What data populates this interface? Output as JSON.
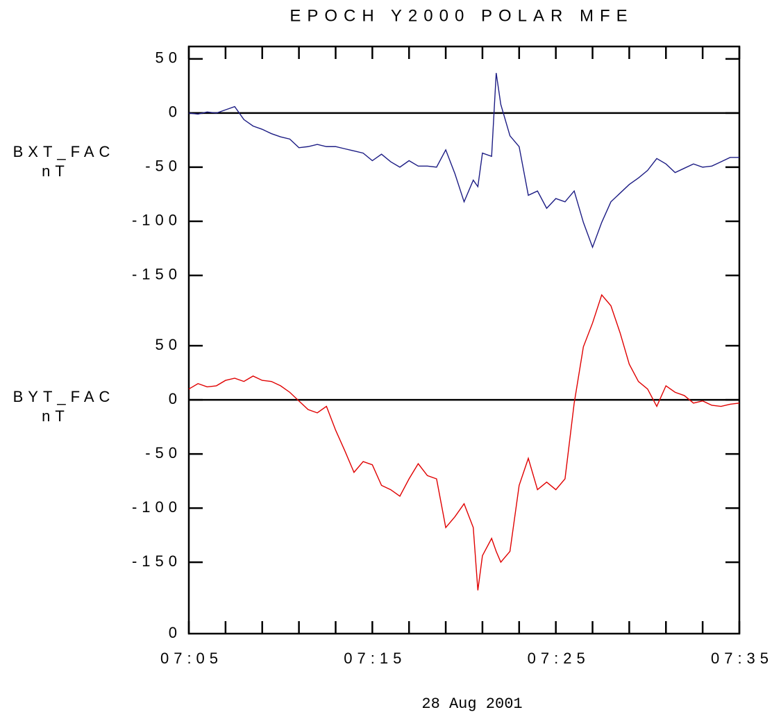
{
  "chart_data": {
    "type": "line",
    "title": "EPOCH Y2000 POLAR MFE",
    "xlabel": "28 Aug 2001",
    "corner_label": "0",
    "xlim": [
      "07:05:00",
      "07:35:00"
    ],
    "xticks": [
      "07:05",
      "07:15",
      "07:25",
      "07:35"
    ],
    "xminorticks": [
      "07:07",
      "07:09",
      "07:11",
      "07:13",
      "07:17",
      "07:19",
      "07:21",
      "07:23",
      "07:27",
      "07:29",
      "07:31",
      "07:33"
    ],
    "x": [
      "07:05:00",
      "07:05:30",
      "07:06:00",
      "07:06:30",
      "07:07:00",
      "07:07:30",
      "07:08:00",
      "07:08:30",
      "07:09:00",
      "07:09:30",
      "07:10:00",
      "07:10:30",
      "07:11:00",
      "07:11:30",
      "07:12:00",
      "07:12:30",
      "07:13:00",
      "07:13:30",
      "07:14:00",
      "07:14:30",
      "07:15:00",
      "07:15:30",
      "07:16:00",
      "07:16:30",
      "07:17:00",
      "07:17:30",
      "07:18:00",
      "07:18:30",
      "07:19:00",
      "07:19:30",
      "07:20:00",
      "07:20:30",
      "07:20:45",
      "07:21:00",
      "07:21:30",
      "07:21:45",
      "07:22:00",
      "07:22:30",
      "07:23:00",
      "07:23:30",
      "07:24:00",
      "07:24:30",
      "07:25:00",
      "07:25:30",
      "07:26:00",
      "07:26:30",
      "07:27:00",
      "07:27:30",
      "07:28:00",
      "07:28:30",
      "07:29:00",
      "07:29:30",
      "07:30:00",
      "07:30:30",
      "07:31:00",
      "07:31:30",
      "07:32:00",
      "07:32:30",
      "07:33:00",
      "07:33:30",
      "07:34:00",
      "07:34:30",
      "07:35:00"
    ],
    "panels": [
      {
        "units": "nT",
        "ylim": [
          -165,
          61.5
        ],
        "yticks": [
          -150,
          -100,
          -50,
          0,
          50
        ],
        "zero_line": true,
        "series": [
          {
            "name": "BXT_FAC",
            "color": "#1c1c84",
            "values": [
              0,
              -1,
              1,
              0,
              3,
              6,
              -6,
              -12,
              -15,
              -19,
              -22,
              -24,
              -32,
              -31,
              -29,
              -31,
              -31,
              -33,
              -35,
              -37,
              -44,
              -38,
              -45,
              -50,
              -44,
              -49,
              -49,
              -50,
              -34,
              -56,
              -82,
              -62,
              -68,
              -37,
              -40,
              37,
              8,
              -21,
              -31,
              -76,
              -72,
              -88,
              -79,
              -82,
              -72,
              -101,
              -124,
              -101,
              -82,
              -74,
              -66,
              -60,
              -53,
              -42,
              -47,
              -55,
              -51,
              -47,
              -50,
              -49,
              -45,
              -41,
              -41
            ]
          }
        ]
      },
      {
        "units": "nT",
        "ylim": [
          -216,
          100
        ],
        "yticks": [
          -150,
          -100,
          -50,
          0,
          50
        ],
        "zero_line": true,
        "series": [
          {
            "name": "BYT_FAC",
            "color": "#e00000",
            "values": [
              10,
              15,
              12,
              13,
              18,
              20,
              17,
              22,
              18,
              17,
              13,
              7,
              -1,
              -9,
              -12,
              -6,
              -28,
              -47,
              -67,
              -57,
              -60,
              -79,
              -83,
              -89,
              -73,
              -59,
              -70,
              -73,
              -118,
              -108,
              -96,
              -118,
              -176,
              -144,
              -128,
              -140,
              -150,
              -140,
              -79,
              -54,
              -83,
              -76,
              -83,
              -73,
              -3,
              49,
              71,
              97,
              87,
              62,
              33,
              17,
              10,
              -6,
              13,
              7,
              4,
              -3,
              -1,
              -5,
              -6,
              -4,
              -3
            ]
          }
        ]
      }
    ]
  }
}
